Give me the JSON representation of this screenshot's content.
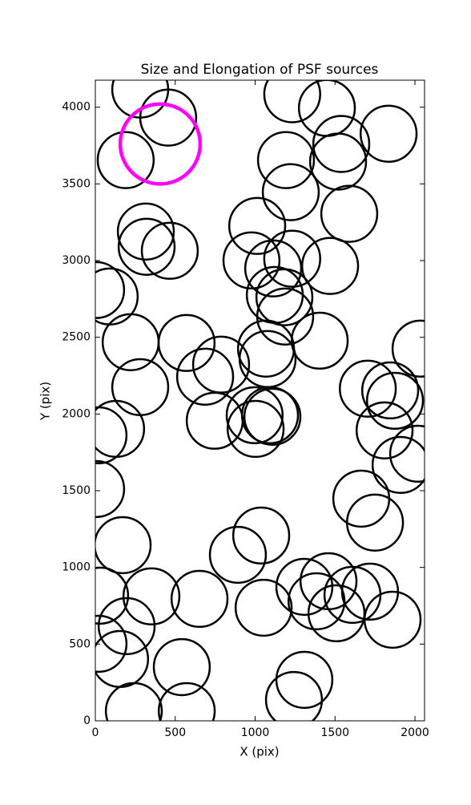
{
  "chart_data": {
    "type": "scatter",
    "title": "Size and Elongation of PSF sources",
    "xlabel": "X (pix)",
    "ylabel": "Y (pix)",
    "xlim": [
      0,
      2060
    ],
    "ylim": [
      0,
      4176
    ],
    "xticks": [
      0,
      500,
      1000,
      1500,
      2000
    ],
    "yticks": [
      0,
      500,
      1000,
      1500,
      2000,
      2500,
      3000,
      3500,
      4000
    ],
    "series": [
      {
        "color": "#000000",
        "radius": 175,
        "x": [
          281,
          456,
          190,
          1232,
          1449,
          1835,
          1539,
          1519,
          1193,
          1223,
          1589,
          1013,
          316,
          321,
          466,
          977,
          1232,
          1113,
          1469,
          5,
          90,
          1123,
          1183,
          1188,
          1404,
          221,
          571,
          1068,
          1078,
          787,
          687,
          281,
          1705,
          1845,
          2035,
          747,
          997,
          1093,
          1108,
          1003,
          1875,
          1810,
          1910,
          2020,
          130,
          20,
          5,
          1664,
          1750,
          1038,
          892,
          171,
          30,
          351,
          652,
          1053,
          1308,
          1459,
          1384,
          1509,
          1609,
          1719,
          1860,
          196,
          20,
          155,
          541,
          1308,
          1243,
          241,
          572
        ],
        "y": [
          4115,
          3932,
          3655,
          4084,
          3995,
          3827,
          3760,
          3645,
          3655,
          3446,
          3305,
          3226,
          3189,
          3090,
          3064,
          3001,
          3012,
          2949,
          2965,
          2808,
          2766,
          2776,
          2761,
          2635,
          2478,
          2468,
          2463,
          2426,
          2358,
          2322,
          2243,
          2175,
          2165,
          2154,
          2426,
          1956,
          1992,
          1992,
          1982,
          1903,
          2086,
          1893,
          1668,
          1741,
          1903,
          1861,
          1511,
          1448,
          1292,
          1208,
          1082,
          1145,
          816,
          811,
          795,
          737,
          873,
          910,
          779,
          701,
          821,
          842,
          659,
          617,
          502,
          403,
          350,
          267,
          136,
          63,
          63
        ]
      },
      {
        "color": "#ff00ff",
        "radius": 250,
        "x": [
          406
        ],
        "y": [
          3760
        ]
      }
    ]
  }
}
